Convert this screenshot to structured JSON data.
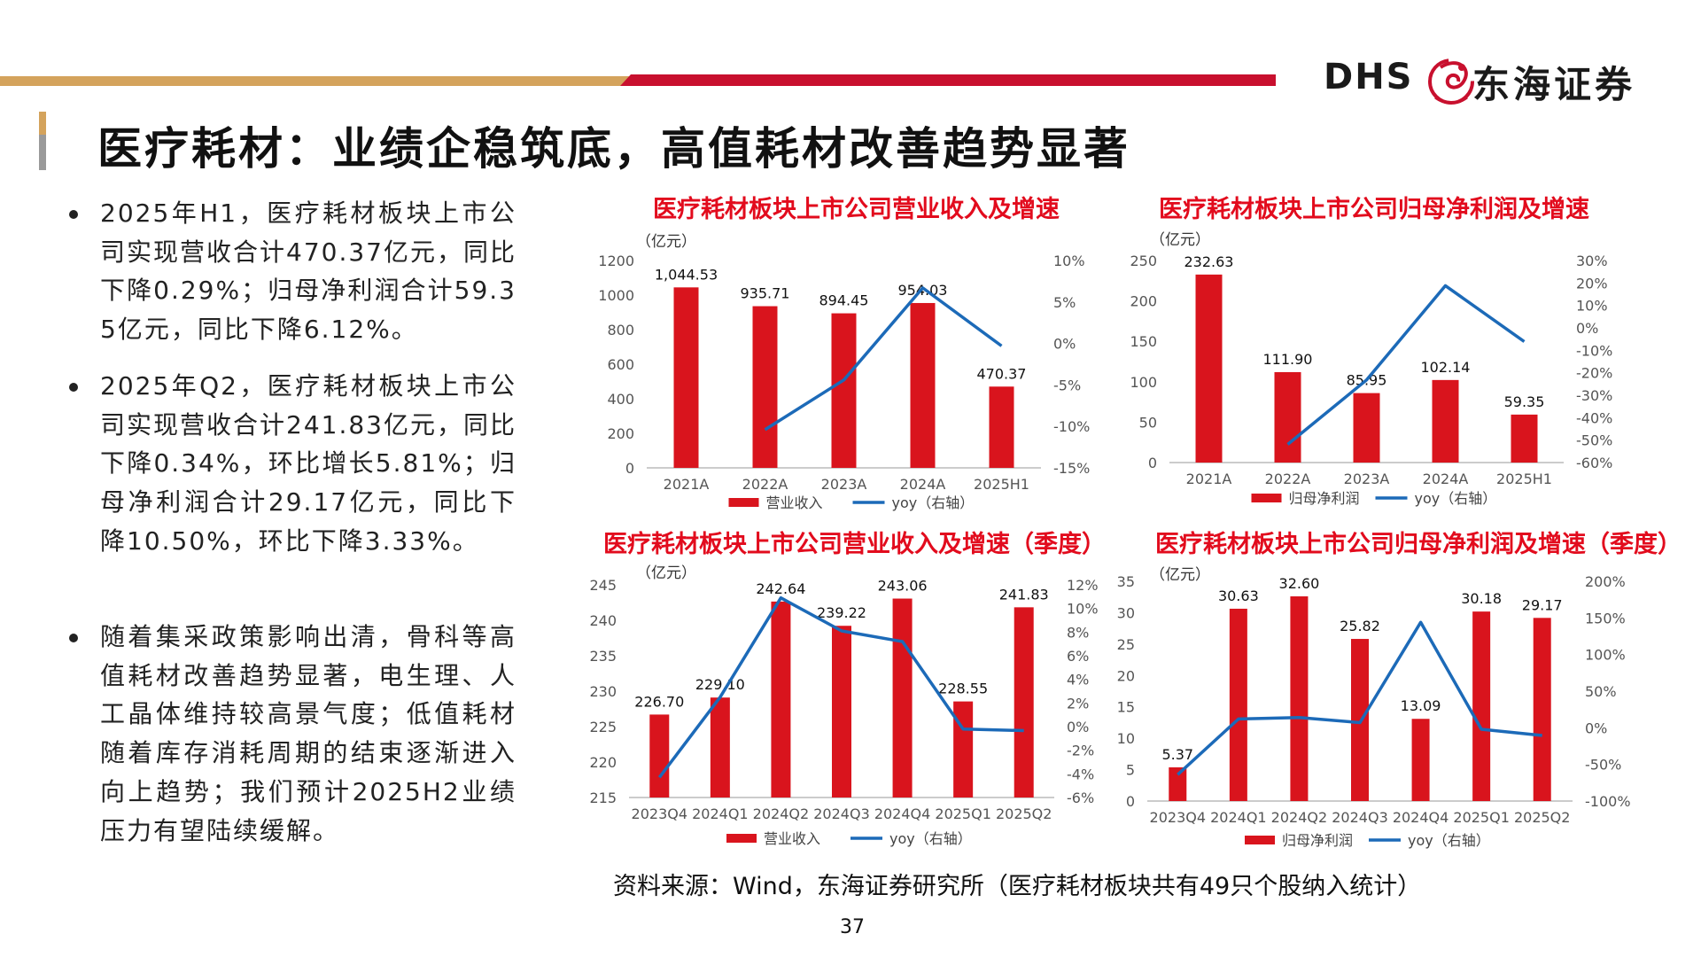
{
  "page": {
    "title": "医疗耗材：业绩企稳筑底，高值耗材改善趋势显著",
    "number": "37",
    "source": "资料来源：Wind，东海证券研究所（医疗耗材板块共有49只个股纳入统计）"
  },
  "logo": {
    "latin": "DHS",
    "chinese": "东海证券"
  },
  "colors": {
    "bar": "#d9141d",
    "line": "#1c6ab8",
    "title": "#e20b1d",
    "gold": "#d4a35c",
    "red": "#c8102e"
  },
  "bullets": [
    "2025年H1，医疗耗材板块上市公司实现营收合计470.37亿元，同比下降0.29%；归母净利润合计59.35亿元，同比下降6.12%。",
    "2025年Q2，医疗耗材板块上市公司实现营收合计241.83亿元，同比下降0.34%，环比增长5.81%；归母净利润合计29.17亿元，同比下降10.50%，环比下降3.33%。",
    "随着集采政策影响出清，骨科等高值耗材改善趋势显著，电生理、人工晶体维持较高景气度；低值耗材随着库存消耗周期的结束逐渐进入向上趋势；我们预计2025H2业绩压力有望陆续缓解。"
  ],
  "chart_data": [
    {
      "type": "bar",
      "title": "医疗耗材板块上市公司营业收入及增速",
      "unit_label": "（亿元）",
      "categories": [
        "2021A",
        "2022A",
        "2023A",
        "2024A",
        "2025H1"
      ],
      "series": [
        {
          "name": "营业收入",
          "values": [
            1044.53,
            935.71,
            894.45,
            954.03,
            470.37
          ],
          "labels": [
            "1,044.53",
            "935.71",
            "894.45",
            "954.03",
            "470.37"
          ]
        },
        {
          "name": "yoy（右轴）",
          "type": "line",
          "axis": "right",
          "values": [
            null,
            -10.4,
            -4.4,
            6.7,
            -0.3
          ]
        }
      ],
      "ylim": [
        0,
        1200
      ],
      "yticks": [
        "0",
        "200",
        "400",
        "600",
        "800",
        "1000",
        "1200"
      ],
      "y2lim": [
        -15,
        10
      ],
      "y2ticks": [
        "-15%",
        "-10%",
        "-5%",
        "0%",
        "5%",
        "10%"
      ],
      "legend": "bottom"
    },
    {
      "type": "bar",
      "title": "医疗耗材板块上市公司归母净利润及增速",
      "unit_label": "（亿元）",
      "categories": [
        "2021A",
        "2022A",
        "2023A",
        "2024A",
        "2025H1"
      ],
      "series": [
        {
          "name": "归母净利润",
          "values": [
            232.63,
            111.9,
            85.95,
            102.14,
            59.35
          ],
          "labels": [
            "232.63",
            "111.90",
            "85.95",
            "102.14",
            "59.35"
          ]
        },
        {
          "name": "yoy（右轴）",
          "type": "line",
          "axis": "right",
          "values": [
            null,
            -51.9,
            -23.2,
            18.8,
            -6.1
          ]
        }
      ],
      "ylim": [
        0,
        250
      ],
      "yticks": [
        "0",
        "50",
        "100",
        "150",
        "200",
        "250"
      ],
      "y2lim": [
        -60,
        30
      ],
      "y2ticks": [
        "-60%",
        "-50%",
        "-40%",
        "-30%",
        "-20%",
        "-10%",
        "0%",
        "10%",
        "20%",
        "30%"
      ],
      "legend": "bottom"
    },
    {
      "type": "bar",
      "title": "医疗耗材板块上市公司营业收入及增速（季度）",
      "unit_label": "（亿元）",
      "categories": [
        "2023Q4",
        "2024Q1",
        "2024Q2",
        "2024Q3",
        "2024Q4",
        "2025Q1",
        "2025Q2"
      ],
      "series": [
        {
          "name": "营业收入",
          "values": [
            226.7,
            229.1,
            242.64,
            239.22,
            243.06,
            228.55,
            241.83
          ],
          "labels": [
            "226.70",
            "229.10",
            "242.64",
            "239.22",
            "243.06",
            "228.55",
            "241.83"
          ]
        },
        {
          "name": "yoy（右轴）",
          "type": "line",
          "axis": "right",
          "values": [
            -4.3,
            2.5,
            10.9,
            8.1,
            7.2,
            -0.2,
            -0.34
          ]
        }
      ],
      "ylim": [
        215,
        245
      ],
      "yticks": [
        "215",
        "220",
        "225",
        "230",
        "235",
        "240",
        "245"
      ],
      "y2lim": [
        -6,
        12
      ],
      "y2ticks": [
        "-6%",
        "-4%",
        "-2%",
        "0%",
        "2%",
        "4%",
        "6%",
        "8%",
        "10%",
        "12%"
      ],
      "legend": "bottom"
    },
    {
      "type": "bar",
      "title": "医疗耗材板块上市公司归母净利润及增速（季度）",
      "unit_label": "（亿元）",
      "categories": [
        "2023Q4",
        "2024Q1",
        "2024Q2",
        "2024Q3",
        "2024Q4",
        "2025Q1",
        "2025Q2"
      ],
      "series": [
        {
          "name": "归母净利润",
          "values": [
            5.37,
            30.63,
            32.6,
            25.82,
            13.09,
            30.18,
            29.17
          ],
          "labels": [
            "5.37",
            "30.63",
            "32.60",
            "25.82",
            "13.09",
            "30.18",
            "29.17"
          ]
        },
        {
          "name": "yoy（右轴）",
          "type": "line",
          "axis": "right",
          "values": [
            -64,
            12,
            14,
            7,
            144,
            -2,
            -10.5
          ]
        }
      ],
      "ylim": [
        0,
        35
      ],
      "yticks": [
        "0",
        "5",
        "10",
        "15",
        "20",
        "25",
        "30",
        "35"
      ],
      "y2lim": [
        -100,
        200
      ],
      "y2ticks": [
        "-100%",
        "-50%",
        "0%",
        "50%",
        "100%",
        "150%",
        "200%"
      ],
      "legend": "bottom"
    }
  ]
}
